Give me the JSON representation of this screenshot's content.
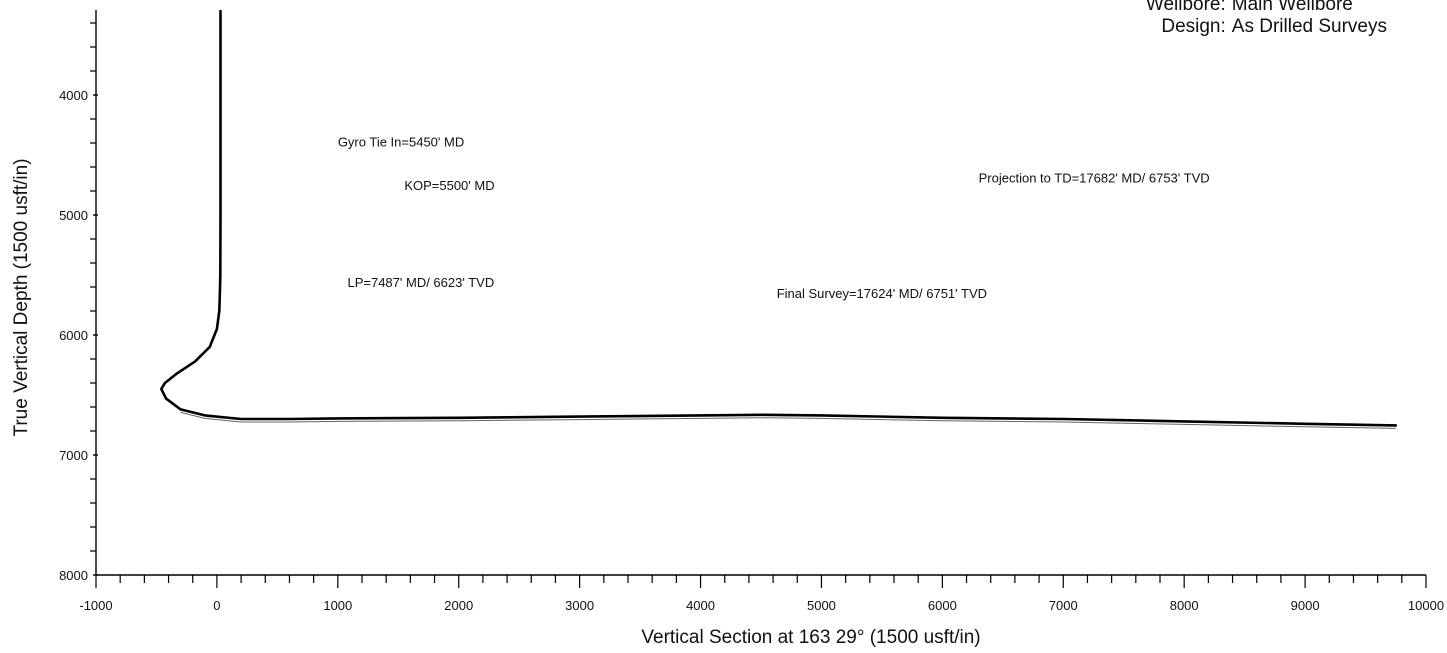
{
  "header": {
    "rows": [
      {
        "label": "Wellbore:",
        "value": "Main Wellbore"
      },
      {
        "label": "Design:",
        "value": "As Drilled Surveys"
      }
    ]
  },
  "chart_data": {
    "type": "line",
    "title": "",
    "xlabel": "Vertical Section at 163 29° (1500 usft/in)",
    "ylabel": "True Vertical Depth (1500 usft/in)",
    "xlim": [
      -1000,
      10000
    ],
    "ylim": [
      3300,
      8000
    ],
    "y_inverted": true,
    "grid": false,
    "x_ticks": [
      -1000,
      0,
      1000,
      2000,
      3000,
      4000,
      5000,
      6000,
      7000,
      8000,
      9000,
      10000
    ],
    "y_ticks": [
      4000,
      5000,
      6000,
      7000,
      8000
    ],
    "series": [
      {
        "x": [
          30,
          30,
          30,
          28,
          25,
          20,
          0,
          -60,
          -180,
          -330,
          -430,
          -460,
          -420,
          -300,
          -100,
          200,
          600,
          1000,
          2000,
          3000,
          4000,
          4500,
          5000,
          6000,
          7000,
          7500,
          8000,
          9000,
          9750
        ],
        "y": [
          3300,
          4000,
          5000,
          5500,
          5650,
          5800,
          5950,
          6100,
          6220,
          6320,
          6400,
          6450,
          6530,
          6620,
          6670,
          6700,
          6700,
          6695,
          6690,
          6680,
          6670,
          6665,
          6670,
          6690,
          6700,
          6710,
          6720,
          6740,
          6753
        ]
      }
    ],
    "annotations": [
      {
        "text": "Gyro Tie In=5450' MD",
        "x": 1000,
        "y": 4430
      },
      {
        "text": "KOP=5500' MD",
        "x": 1550,
        "y": 4790
      },
      {
        "text": "LP=7487' MD/ 6623' TVD",
        "x": 1080,
        "y": 5600
      },
      {
        "text": "Final Survey=17624' MD/ 6751' TVD",
        "x": 4630,
        "y": 5690
      },
      {
        "text": "Projection to TD=17682' MD/ 6753' TVD",
        "x": 6300,
        "y": 4730
      }
    ]
  }
}
